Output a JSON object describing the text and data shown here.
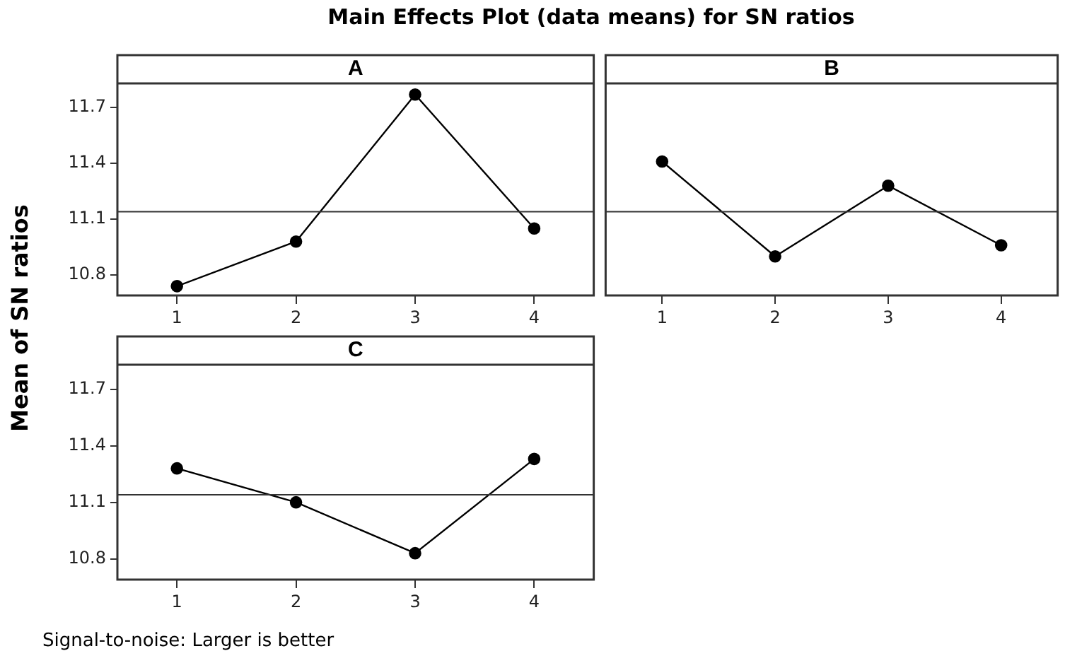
{
  "chart_data": [
    {
      "type": "line",
      "title": "A",
      "categories": [
        "1",
        "2",
        "3",
        "4"
      ],
      "values": [
        10.74,
        10.98,
        11.77,
        11.05
      ],
      "color": "#000000",
      "marker": "circle",
      "line_style": "solid",
      "ylim": [
        10.69,
        11.83
      ],
      "yticks": [
        10.8,
        11.1,
        11.4,
        11.7
      ],
      "ref_lines": [
        {
          "axis": "y",
          "value": 11.14
        }
      ],
      "legend": false,
      "annotations": [
        "Main Effects Plot (data means) for SN ratios"
      ],
      "ylabel": "Mean of SN ratios"
    },
    {
      "type": "line",
      "title": "B",
      "categories": [
        "1",
        "2",
        "3",
        "4"
      ],
      "values": [
        11.41,
        10.9,
        11.28,
        10.96
      ],
      "color": "#000000",
      "marker": "circle",
      "line_style": "solid",
      "ylim": [
        10.69,
        11.83
      ],
      "yticks": [
        10.8,
        11.1,
        11.4,
        11.7
      ],
      "ref_lines": [
        {
          "axis": "y",
          "value": 11.14
        }
      ],
      "legend": false,
      "tick_labels": "x"
    },
    {
      "type": "line",
      "title": "C",
      "categories": [
        "1",
        "2",
        "3",
        "4"
      ],
      "values": [
        11.28,
        11.1,
        10.83,
        11.33
      ],
      "color": "#000000",
      "marker": "circle",
      "line_style": "solid",
      "ylim": [
        10.69,
        11.83
      ],
      "yticks": [
        10.8,
        11.1,
        11.4,
        11.7
      ],
      "ref_lines": [
        {
          "axis": "y",
          "value": 11.14
        }
      ],
      "legend": false,
      "annotations": [
        "Signal-to-noise: Larger is better"
      ]
    }
  ]
}
